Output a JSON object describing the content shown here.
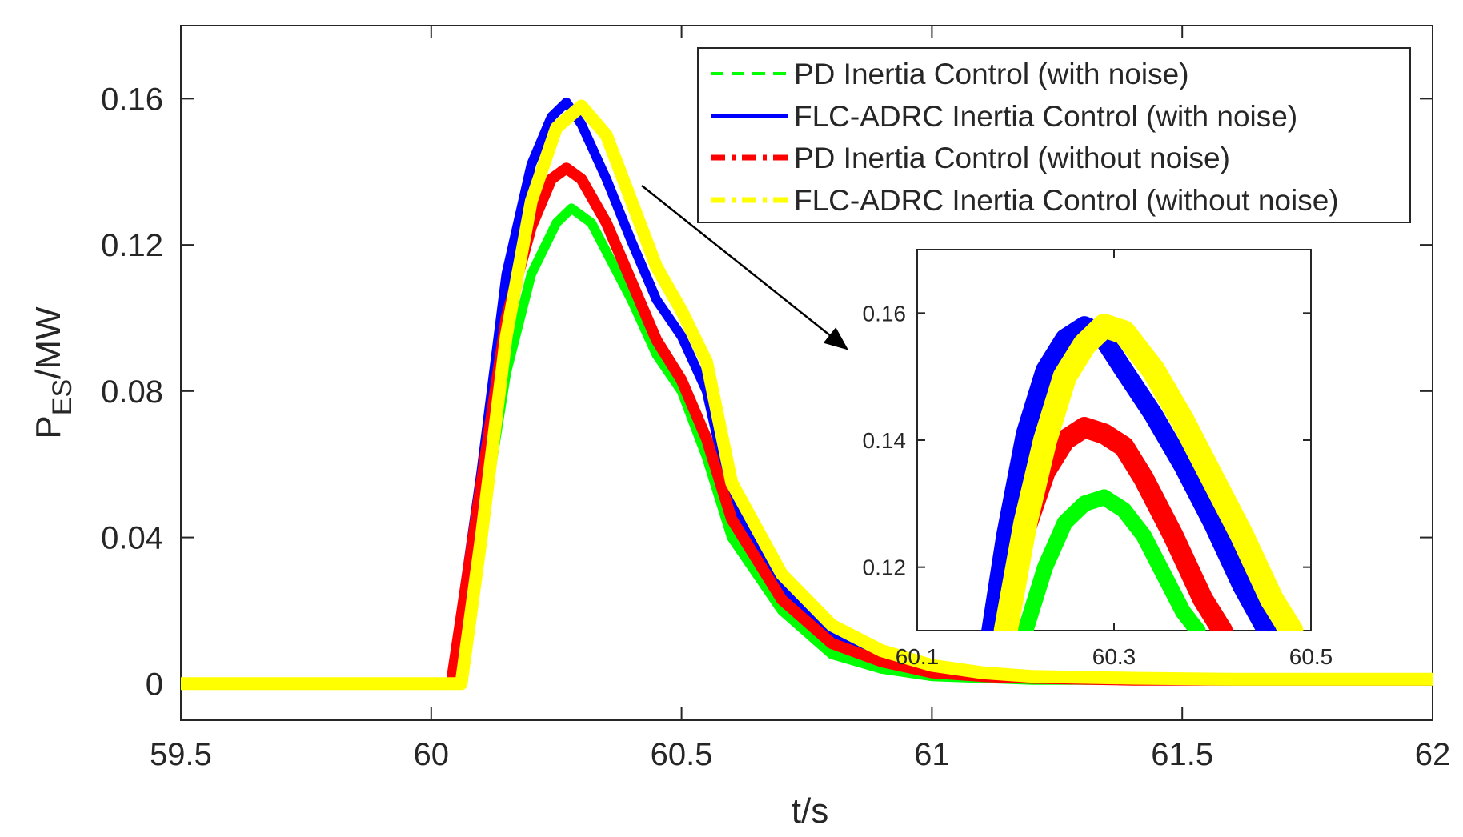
{
  "chart_data": [
    {
      "id": "main",
      "type": "line",
      "title": "",
      "xlabel": "t/s",
      "ylabel_main": "P",
      "ylabel_sub": "ES",
      "ylabel_unit": "/MW",
      "xlim": [
        59.5,
        62
      ],
      "ylim": [
        -0.01,
        0.18
      ],
      "xticks": [
        59.5,
        60,
        60.5,
        61,
        61.5,
        62
      ],
      "xtick_labels": [
        "59.5",
        "60",
        "60.5",
        "61",
        "61.5",
        "62"
      ],
      "yticks": [
        0,
        0.04,
        0.08,
        0.12,
        0.16
      ],
      "ytick_labels": [
        "0",
        "0.04",
        "0.08",
        "0.12",
        "0.16"
      ],
      "legend_position": "top-right",
      "series": [
        {
          "name": "PD Inertia Control (with noise)",
          "color": "#00ff00",
          "style": "dashed",
          "x": [
            59.5,
            60.0,
            60.05,
            60.1,
            60.15,
            60.2,
            60.25,
            60.28,
            60.32,
            60.4,
            60.45,
            60.5,
            60.55,
            60.6,
            60.7,
            60.8,
            60.9,
            61.0,
            61.1,
            61.2,
            61.4,
            61.6,
            61.8,
            62.0
          ],
          "y": [
            0,
            0,
            0.0,
            0.042,
            0.085,
            0.112,
            0.126,
            0.13,
            0.126,
            0.105,
            0.09,
            0.08,
            0.062,
            0.04,
            0.02,
            0.008,
            0.004,
            0.002,
            0.0015,
            0.001,
            0.001,
            0.0008,
            0.0008,
            0.0008
          ]
        },
        {
          "name": "FLC-ADRC Inertia Control (with noise)",
          "color": "#0000ff",
          "style": "solid",
          "x": [
            59.5,
            60.0,
            60.04,
            60.1,
            60.15,
            60.2,
            60.24,
            60.27,
            60.3,
            60.35,
            60.4,
            60.45,
            60.5,
            60.55,
            60.6,
            60.7,
            60.8,
            60.9,
            61.0,
            61.1,
            61.2,
            61.4,
            61.6,
            61.8,
            62.0
          ],
          "y": [
            0,
            0,
            0.0,
            0.058,
            0.112,
            0.142,
            0.155,
            0.159,
            0.153,
            0.138,
            0.121,
            0.105,
            0.095,
            0.08,
            0.05,
            0.026,
            0.013,
            0.007,
            0.004,
            0.003,
            0.002,
            0.0015,
            0.0012,
            0.0012,
            0.0012
          ]
        },
        {
          "name": "PD Inertia Control (without noise)",
          "color": "#ff0000",
          "style": "dashdot",
          "x": [
            59.5,
            60.0,
            60.04,
            60.1,
            60.15,
            60.2,
            60.24,
            60.27,
            60.3,
            60.35,
            60.4,
            60.45,
            60.5,
            60.55,
            60.6,
            60.7,
            60.8,
            60.9,
            61.0,
            61.1,
            61.2,
            61.4,
            61.6,
            61.8,
            62.0
          ],
          "y": [
            0,
            0,
            0.0,
            0.055,
            0.1,
            0.125,
            0.138,
            0.141,
            0.138,
            0.126,
            0.11,
            0.094,
            0.083,
            0.067,
            0.045,
            0.023,
            0.011,
            0.006,
            0.003,
            0.002,
            0.0015,
            0.001,
            0.001,
            0.001,
            0.001
          ]
        },
        {
          "name": "FLC-ADRC Inertia Control (without noise)",
          "color": "#ffff00",
          "style": "dashdot",
          "x": [
            59.5,
            60.0,
            60.06,
            60.1,
            60.15,
            60.2,
            60.25,
            60.3,
            60.35,
            60.4,
            60.45,
            60.5,
            60.55,
            60.6,
            60.7,
            60.8,
            60.9,
            61.0,
            61.1,
            61.2,
            61.4,
            61.6,
            61.8,
            62.0
          ],
          "y": [
            0,
            0,
            0.0,
            0.04,
            0.095,
            0.132,
            0.152,
            0.158,
            0.15,
            0.132,
            0.114,
            0.102,
            0.088,
            0.055,
            0.03,
            0.016,
            0.009,
            0.005,
            0.003,
            0.002,
            0.0015,
            0.0012,
            0.0012,
            0.0012
          ]
        }
      ]
    },
    {
      "id": "inset",
      "type": "line",
      "title": "",
      "xlim": [
        60.1,
        60.5
      ],
      "ylim": [
        0.11,
        0.17
      ],
      "xticks": [
        60.1,
        60.3,
        60.5
      ],
      "xtick_labels": [
        "60.1",
        "60.3",
        "60.5"
      ],
      "yticks": [
        0.12,
        0.14,
        0.16
      ],
      "ytick_labels": [
        "0.12",
        "0.14",
        "0.16"
      ],
      "series": [
        {
          "name": "PD Inertia Control (with noise)",
          "color": "#00ff00",
          "x": [
            60.21,
            60.23,
            60.25,
            60.27,
            60.29,
            60.31,
            60.33,
            60.35,
            60.37,
            60.385
          ],
          "y": [
            0.11,
            0.12,
            0.127,
            0.13,
            0.131,
            0.129,
            0.125,
            0.119,
            0.113,
            0.11
          ]
        },
        {
          "name": "FLC-ADRC Inertia Control (with noise)",
          "color": "#0000ff",
          "x": [
            60.175,
            60.19,
            60.21,
            60.23,
            60.25,
            60.27,
            60.285,
            60.31,
            60.34,
            60.37,
            60.4,
            60.43,
            60.455
          ],
          "y": [
            0.11,
            0.125,
            0.141,
            0.151,
            0.156,
            0.158,
            0.157,
            0.151,
            0.144,
            0.136,
            0.127,
            0.117,
            0.11
          ]
        },
        {
          "name": "PD Inertia Control (without noise)",
          "color": "#ff0000",
          "x": [
            60.19,
            60.21,
            60.23,
            60.25,
            60.27,
            60.29,
            60.31,
            60.33,
            60.36,
            60.39,
            60.41
          ],
          "y": [
            0.11,
            0.126,
            0.135,
            0.14,
            0.142,
            0.141,
            0.139,
            0.134,
            0.125,
            0.115,
            0.11
          ]
        },
        {
          "name": "FLC-ADRC Inertia Control (without noise)",
          "color": "#ffff00",
          "x": [
            60.19,
            60.21,
            60.23,
            60.25,
            60.27,
            60.29,
            60.31,
            60.34,
            60.37,
            60.4,
            60.43,
            60.46,
            60.48
          ],
          "y": [
            0.11,
            0.127,
            0.14,
            0.15,
            0.155,
            0.158,
            0.157,
            0.151,
            0.143,
            0.134,
            0.125,
            0.115,
            0.11
          ]
        }
      ]
    }
  ]
}
